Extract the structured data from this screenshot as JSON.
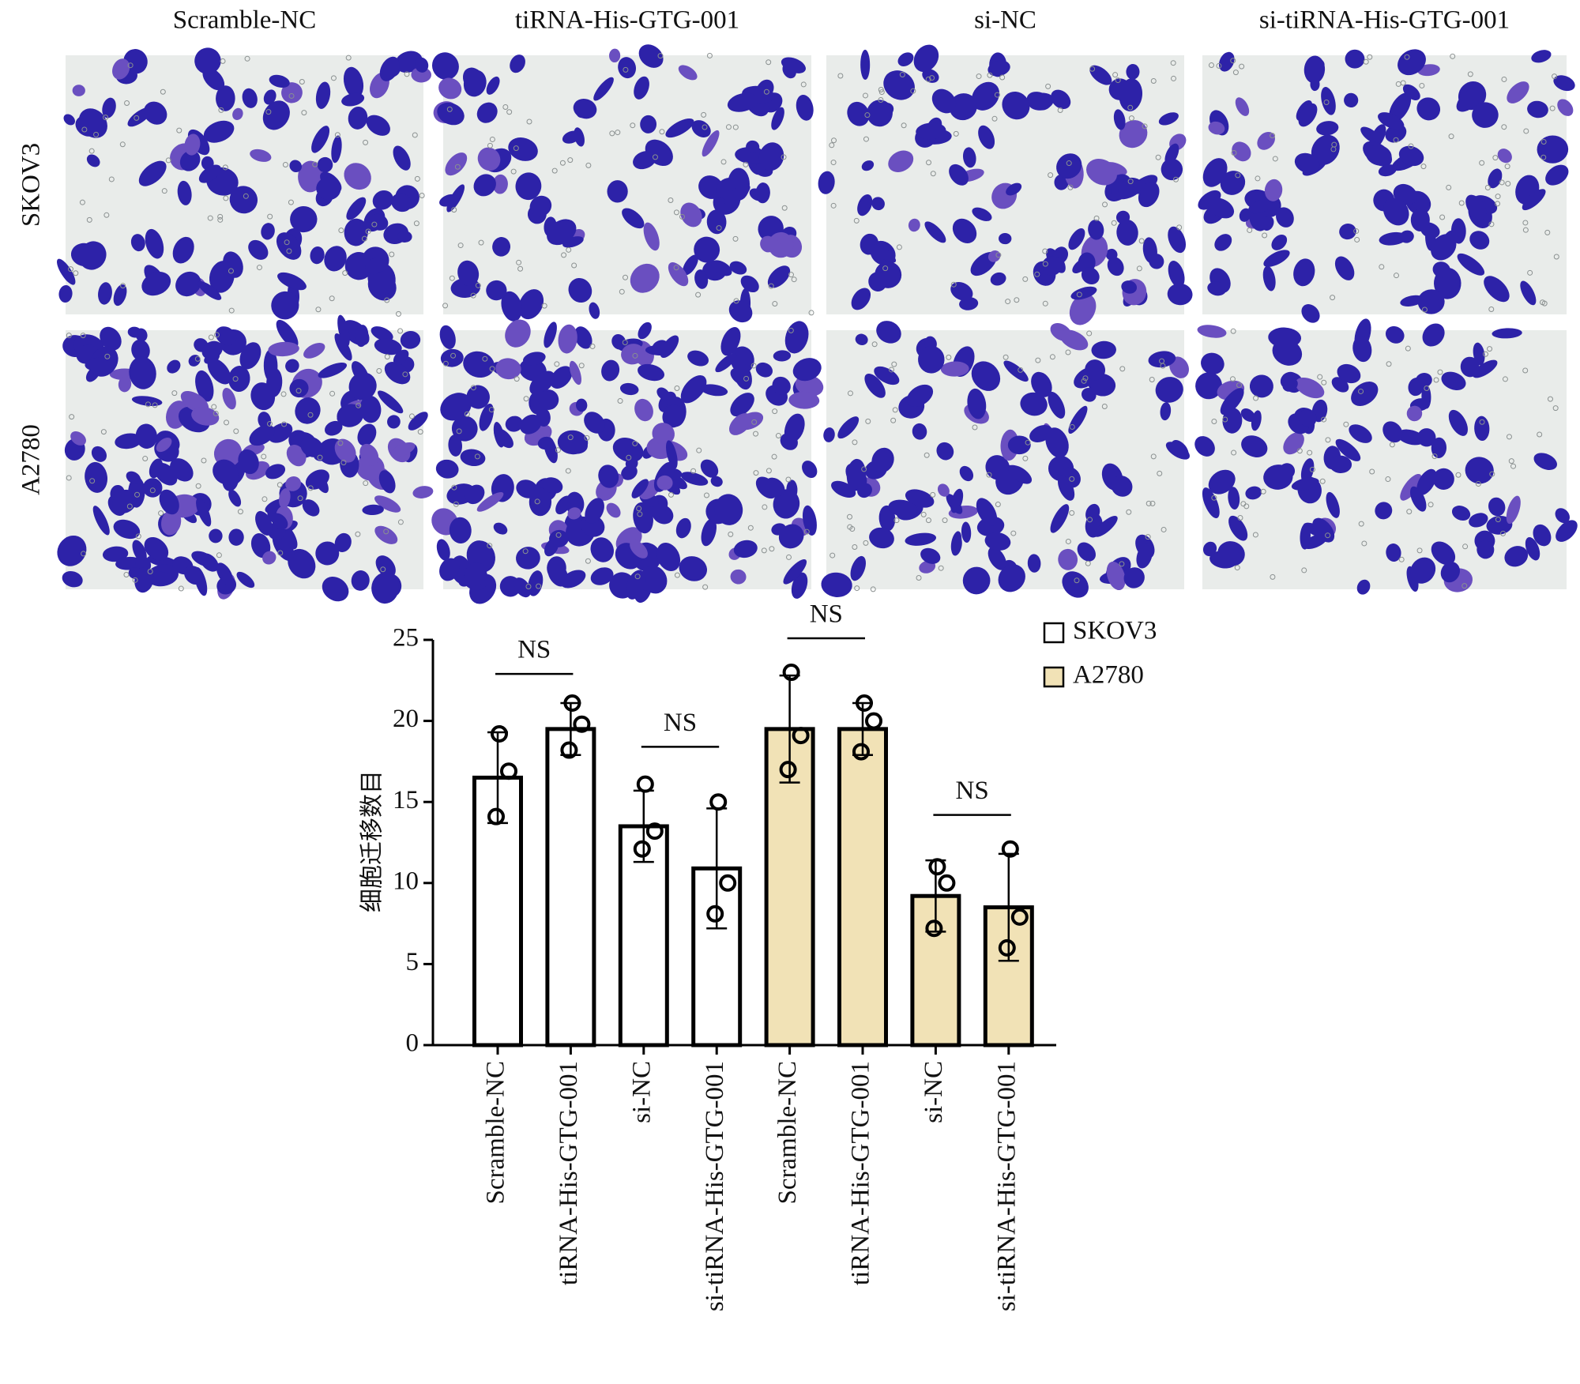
{
  "panels": {
    "columns": [
      "Scramble-NC",
      "tiRNA-His-GTG-001",
      "si-NC",
      "si-tiRNA-His-GTG-001"
    ],
    "rows": [
      "SKOV3",
      "A2780"
    ]
  },
  "chart_data": {
    "type": "bar",
    "ylabel": "细胞迁移数目",
    "categories": [
      "Scramble-NC",
      "tiRNA-His-GTG-001",
      "si-NC",
      "si-tiRNA-His-GTG-001"
    ],
    "series": [
      {
        "name": "SKOV3",
        "color": "#ffffff",
        "values": [
          16.5,
          19.5,
          13.5,
          10.9
        ],
        "errors": [
          2.8,
          1.6,
          2.2,
          3.7
        ],
        "points": [
          [
            19.2,
            16.9,
            14.1
          ],
          [
            21.1,
            19.8,
            18.2
          ],
          [
            16.1,
            13.2,
            12.1
          ],
          [
            15,
            10,
            8.1
          ]
        ]
      },
      {
        "name": "A2780",
        "color": "#f1e2b6",
        "values": [
          19.5,
          19.5,
          9.2,
          8.5
        ],
        "errors": [
          3.3,
          1.6,
          2.2,
          3.3
        ],
        "points": [
          [
            23,
            19.1,
            17
          ],
          [
            21.1,
            20,
            18.1
          ],
          [
            11,
            10,
            7.2
          ],
          [
            12.1,
            7.9,
            6
          ]
        ]
      }
    ],
    "annotations": [
      "NS",
      "NS",
      "NS",
      "NS"
    ],
    "ylim": [
      0,
      25
    ],
    "yticks": [
      0,
      5,
      10,
      15,
      20,
      25
    ]
  }
}
